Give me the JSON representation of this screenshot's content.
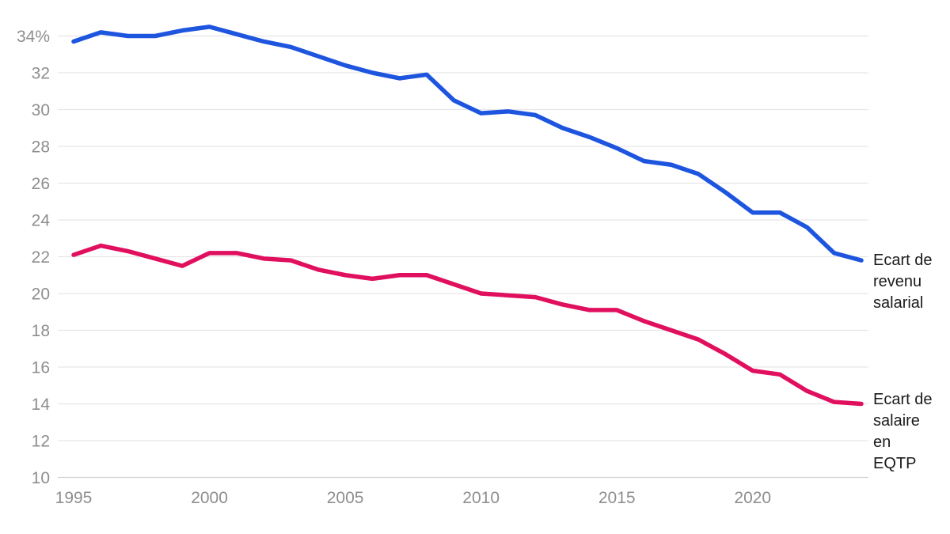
{
  "chart_data": {
    "type": "line",
    "title": "",
    "xlabel": "",
    "ylabel": "",
    "unit": "%",
    "x": [
      1995,
      1996,
      1997,
      1998,
      1999,
      2000,
      2001,
      2002,
      2003,
      2004,
      2005,
      2006,
      2007,
      2008,
      2009,
      2010,
      2011,
      2012,
      2013,
      2014,
      2015,
      2016,
      2017,
      2018,
      2019,
      2020,
      2021,
      2022,
      2023,
      2024
    ],
    "x_ticks": [
      1995,
      2000,
      2005,
      2010,
      2015,
      2020
    ],
    "y_ticks": [
      {
        "value": 34,
        "label": "34%"
      },
      {
        "value": 32,
        "label": "32"
      },
      {
        "value": 30,
        "label": "30"
      },
      {
        "value": 28,
        "label": "28"
      },
      {
        "value": 26,
        "label": "26"
      },
      {
        "value": 24,
        "label": "24"
      },
      {
        "value": 22,
        "label": "22"
      },
      {
        "value": 20,
        "label": "20"
      },
      {
        "value": 18,
        "label": "18"
      },
      {
        "value": 16,
        "label": "16"
      },
      {
        "value": 14,
        "label": "14"
      },
      {
        "value": 12,
        "label": "12"
      },
      {
        "value": 10,
        "label": "10"
      }
    ],
    "ylim": [
      10,
      35
    ],
    "grid": true,
    "legend_position": "right-end-labels",
    "series": [
      {
        "name": "Ecart de revenu salarial",
        "color": "#1e55df",
        "values": [
          33.7,
          34.2,
          34.0,
          34.0,
          34.3,
          34.5,
          34.1,
          33.7,
          33.4,
          32.9,
          32.4,
          32.0,
          31.7,
          31.9,
          30.5,
          29.8,
          29.9,
          29.7,
          29.0,
          28.5,
          27.9,
          27.2,
          27.0,
          26.5,
          25.5,
          24.4,
          24.4,
          23.6,
          22.2,
          21.8
        ]
      },
      {
        "name": "Ecart de salaire en EQTP",
        "color": "#e0105f",
        "values": [
          22.1,
          22.6,
          22.3,
          21.9,
          21.5,
          22.2,
          22.2,
          21.9,
          21.8,
          21.3,
          21.0,
          20.8,
          21.0,
          21.0,
          20.5,
          20.0,
          19.9,
          19.8,
          19.4,
          19.1,
          19.1,
          18.5,
          18.0,
          17.5,
          16.7,
          15.8,
          15.6,
          14.7,
          14.1,
          14.0
        ]
      }
    ]
  },
  "colors": {
    "background": "#ffffff",
    "gridline": "#e6e6e6",
    "baseline": "#d4d4d4",
    "tick_text": "#8e8e8e",
    "label_text": "#1b1b1b",
    "series_blue": "#1e55df",
    "series_pink": "#e0105f"
  }
}
